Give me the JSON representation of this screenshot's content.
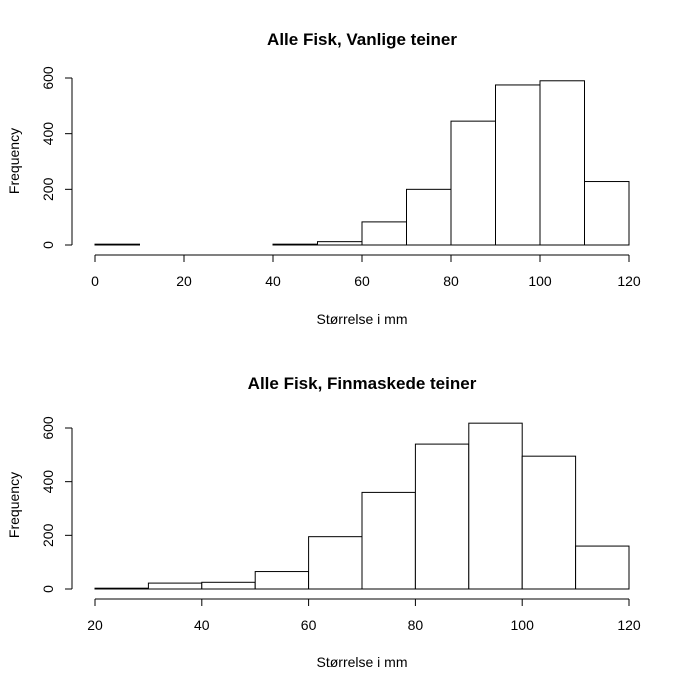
{
  "chart_data": [
    {
      "type": "bar",
      "title": "Alle Fisk, Vanlige teiner",
      "xlabel": "Størrelse i mm",
      "ylabel": "Frequency",
      "bin_edges": [
        0,
        10,
        20,
        30,
        40,
        50,
        60,
        70,
        80,
        90,
        100,
        110,
        120
      ],
      "values": [
        3,
        0,
        0,
        0,
        3,
        12,
        83,
        200,
        445,
        575,
        590,
        228
      ],
      "xlim": [
        0,
        120
      ],
      "ylim": [
        0,
        600
      ],
      "xticks": [
        "0",
        "20",
        "40",
        "60",
        "80",
        "100",
        "120"
      ],
      "yticks": [
        "0",
        "200",
        "400",
        "600"
      ],
      "grid": false
    },
    {
      "type": "bar",
      "title": "Alle Fisk, Finmaskede teiner",
      "xlabel": "Størrelse i mm",
      "ylabel": "Frequency",
      "bin_edges": [
        20,
        30,
        40,
        50,
        60,
        70,
        80,
        90,
        100,
        110,
        120
      ],
      "values": [
        3,
        22,
        25,
        65,
        195,
        360,
        540,
        618,
        495,
        160
      ],
      "xlim": [
        20,
        120
      ],
      "ylim": [
        0,
        600
      ],
      "xticks": [
        "20",
        "40",
        "60",
        "80",
        "100",
        "120"
      ],
      "yticks": [
        "0",
        "200",
        "400",
        "600"
      ],
      "grid": false
    }
  ]
}
